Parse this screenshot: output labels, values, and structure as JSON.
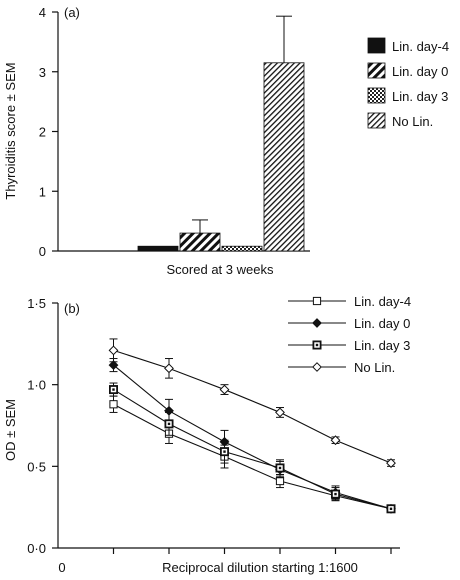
{
  "chart_data": [
    {
      "type": "bar",
      "panel_label": "(a)",
      "ylabel": "Thyroiditis score ± SEM",
      "xlabel": "Scored at 3 weeks",
      "ylim": [
        0,
        4
      ],
      "yticks": [
        "0",
        "1",
        "2",
        "3",
        "4"
      ],
      "legend_position": "right",
      "series": [
        {
          "name": "Lin. day-4",
          "value": 0.08,
          "error": 0.0,
          "fill": "solid"
        },
        {
          "name": "Lin. day 0",
          "value": 0.3,
          "error": 0.22,
          "fill": "coarse-hatch"
        },
        {
          "name": "Lin. day 3",
          "value": 0.08,
          "error": 0.0,
          "fill": "crosshatch"
        },
        {
          "name": "No Lin.",
          "value": 3.15,
          "error": 0.78,
          "fill": "fine-hatch"
        }
      ]
    },
    {
      "type": "line",
      "panel_label": "(b)",
      "ylabel": "OD ± SEM",
      "xlabel": "Reciprocal dilution starting 1:1600",
      "ylim": [
        0,
        1.5
      ],
      "yticks": [
        "0·0",
        "0·5",
        "1·0",
        "1·5"
      ],
      "xticks": [
        "0"
      ],
      "x": [
        1,
        2,
        3,
        4,
        5,
        6
      ],
      "legend_position": "top-right",
      "series": [
        {
          "name": "Lin. day-4",
          "marker": "open-square",
          "values": [
            0.88,
            0.7,
            0.56,
            0.41,
            0.32,
            0.24
          ],
          "errors": [
            0.05,
            0.06,
            0.07,
            0.04,
            0.03,
            0.02
          ]
        },
        {
          "name": "Lin. day 0",
          "marker": "filled-diamond",
          "values": [
            1.12,
            0.84,
            0.65,
            0.48,
            0.34,
            0.24
          ],
          "errors": [
            0.04,
            0.07,
            0.07,
            0.05,
            0.04,
            0.02
          ]
        },
        {
          "name": "Lin. day 3",
          "marker": "dotted-square",
          "values": [
            0.97,
            0.76,
            0.59,
            0.49,
            0.33,
            0.24
          ],
          "errors": [
            0.04,
            0.07,
            0.07,
            0.05,
            0.04,
            0.02
          ]
        },
        {
          "name": "No Lin.",
          "marker": "open-diamond",
          "values": [
            1.21,
            1.1,
            0.97,
            0.83,
            0.66,
            0.52
          ],
          "errors": [
            0.07,
            0.06,
            0.03,
            0.03,
            0.02,
            0.02
          ]
        }
      ]
    }
  ]
}
